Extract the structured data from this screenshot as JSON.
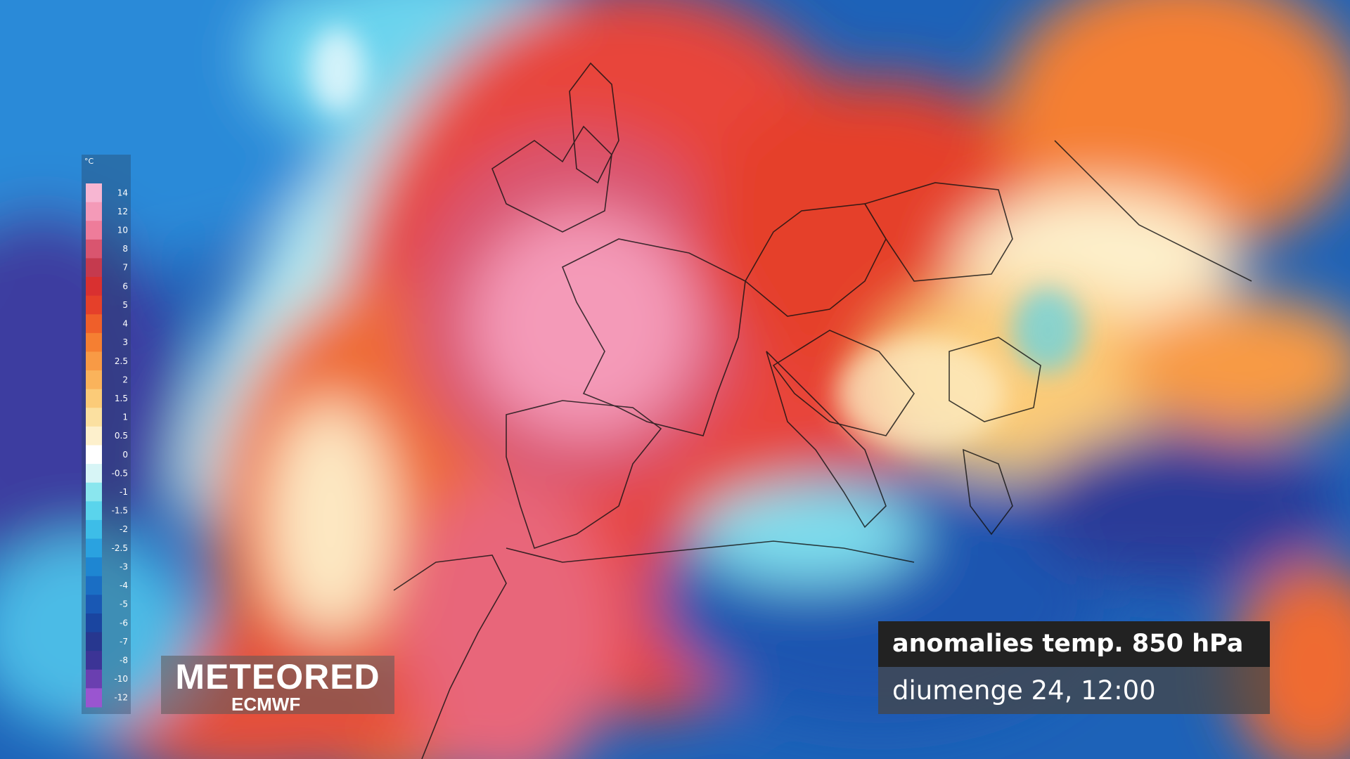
{
  "legend": {
    "unit": "°C",
    "labels": [
      14,
      12,
      10,
      8,
      7,
      6,
      5,
      4,
      3,
      2.5,
      2,
      1.5,
      1,
      0.5,
      0,
      -0.5,
      -1,
      -1.5,
      -2,
      -2.5,
      -3,
      -4,
      -5,
      -6,
      -7,
      -8,
      -10,
      -12
    ],
    "colors": [
      "#f7b6d2",
      "#f49ab8",
      "#ee7c9a",
      "#d9556f",
      "#c53a4e",
      "#d93030",
      "#e5402a",
      "#ef5f2a",
      "#f57f32",
      "#f89a45",
      "#fab35b",
      "#fbcb78",
      "#fbe0a0",
      "#fdf0cc",
      "#ffffff",
      "#d7f5f6",
      "#8ae6ee",
      "#5ad4ec",
      "#3dbde8",
      "#2aa2e0",
      "#1e86d2",
      "#1a6ec4",
      "#1958b4",
      "#1a45a0",
      "#27378f",
      "#3c3496",
      "#6a3fb0",
      "#9a55d0"
    ]
  },
  "logo": {
    "brand": "METEORED",
    "source": "ECMWF"
  },
  "caption": {
    "title": "anomalies temp. 850 hPa",
    "date": "diumenge 24, 12:00"
  }
}
